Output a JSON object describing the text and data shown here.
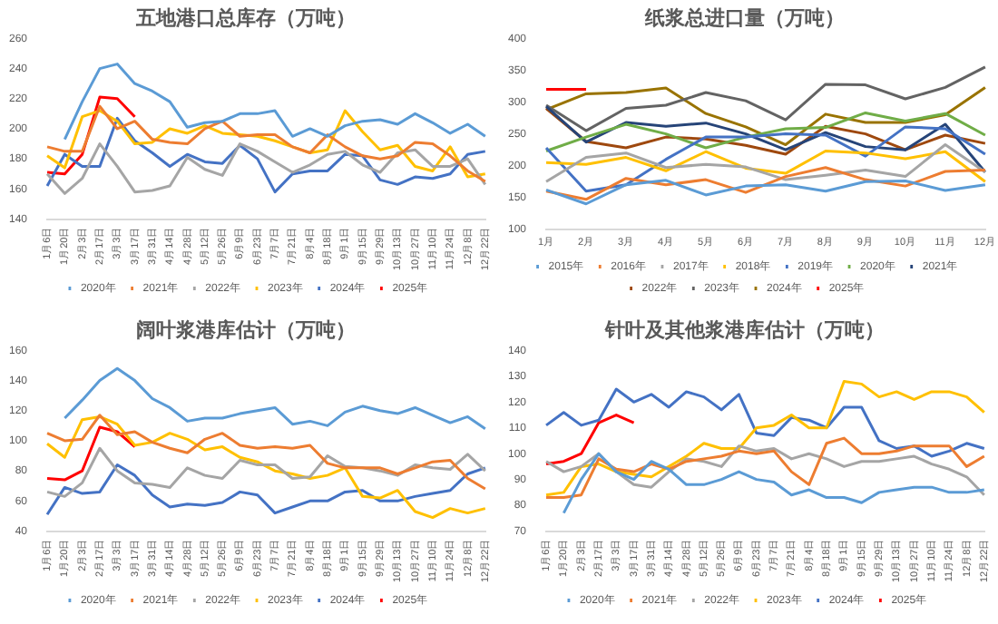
{
  "chart_data": [
    {
      "type": "line",
      "title": "五地港口总库存（万吨）",
      "legend": "bottom",
      "marker": "none",
      "ylim": [
        140,
        260
      ],
      "yticks": [
        140,
        160,
        180,
        200,
        220,
        240,
        260
      ],
      "categories": [
        "1月6日",
        "1月20日",
        "2月3日",
        "2月17日",
        "3月3日",
        "3月17日",
        "3月31日",
        "4月14日",
        "4月28日",
        "5月12日",
        "5月26日",
        "6月9日",
        "6月23日",
        "7月7日",
        "7月21日",
        "8月4日",
        "8月18日",
        "9月1日",
        "9月15日",
        "9月29日",
        "10月13日",
        "10月27日",
        "11月10日",
        "11月24日",
        "12月8日",
        "12月22日"
      ],
      "series": [
        {
          "name": "2020年",
          "color": "#5b9bd5",
          "values": [
            null,
            193,
            218,
            240,
            243,
            230,
            225,
            218,
            201,
            204,
            205,
            210,
            210,
            212,
            195,
            200,
            195,
            202,
            205,
            206,
            203,
            210,
            204,
            197,
            203,
            195
          ]
        },
        {
          "name": "2021年",
          "color": "#ed7d31",
          "values": [
            188,
            185,
            185,
            215,
            200,
            205,
            193,
            191,
            190,
            200,
            205,
            195,
            196,
            196,
            188,
            184,
            196,
            188,
            182,
            180,
            182,
            191,
            190,
            182,
            172,
            165
          ]
        },
        {
          "name": "2022年",
          "color": "#a5a5a5",
          "values": [
            170,
            157,
            167,
            190,
            175,
            158,
            159,
            162,
            181,
            173,
            169,
            190,
            185,
            178,
            171,
            176,
            183,
            185,
            176,
            171,
            184,
            186,
            175,
            175,
            180,
            163
          ]
        },
        {
          "name": "2023年",
          "color": "#ffc000",
          "values": [
            182,
            174,
            208,
            212,
            205,
            190,
            191,
            200,
            197,
            202,
            197,
            196,
            195,
            192,
            188,
            184,
            186,
            212,
            198,
            186,
            189,
            175,
            172,
            188,
            168,
            170
          ]
        },
        {
          "name": "2024年",
          "color": "#4472c4",
          "values": [
            162,
            183,
            175,
            175,
            207,
            192,
            184,
            175,
            183,
            178,
            177,
            189,
            180,
            158,
            170,
            172,
            172,
            183,
            182,
            166,
            163,
            168,
            167,
            170,
            183,
            185
          ]
        },
        {
          "name": "2025年",
          "color": "#ff0000",
          "values": [
            171,
            170,
            183,
            221,
            220,
            208,
            null,
            null,
            null,
            null,
            null,
            null,
            null,
            null,
            null,
            null,
            null,
            null,
            null,
            null,
            null,
            null,
            null,
            null,
            null,
            null
          ]
        }
      ]
    },
    {
      "type": "line",
      "title": "纸浆总进口量（万吨）",
      "legend": "bottom",
      "marker": "none",
      "ylim": [
        100,
        400
      ],
      "yticks": [
        100,
        150,
        200,
        250,
        300,
        350,
        400
      ],
      "categories": [
        "1月",
        "2月",
        "3月",
        "4月",
        "5月",
        "6月",
        "7月",
        "8月",
        "9月",
        "10月",
        "11月",
        "12月"
      ],
      "series": [
        {
          "name": "2015年",
          "color": "#5b9bd5",
          "values": [
            162,
            140,
            170,
            177,
            154,
            168,
            170,
            160,
            175,
            176,
            161,
            170
          ]
        },
        {
          "name": "2016年",
          "color": "#ed7d31",
          "values": [
            160,
            147,
            180,
            170,
            178,
            158,
            183,
            197,
            178,
            168,
            191,
            193
          ]
        },
        {
          "name": "2017年",
          "color": "#a5a5a5",
          "values": [
            175,
            213,
            220,
            197,
            202,
            198,
            178,
            185,
            193,
            183,
            233,
            190
          ]
        },
        {
          "name": "2018年",
          "color": "#ffc000",
          "values": [
            205,
            202,
            213,
            192,
            222,
            196,
            188,
            223,
            220,
            211,
            222,
            175
          ]
        },
        {
          "name": "2019年",
          "color": "#4472c4",
          "values": [
            228,
            160,
            170,
            210,
            245,
            245,
            250,
            248,
            215,
            261,
            258,
            218
          ]
        },
        {
          "name": "2020年",
          "color": "#70ad47",
          "values": [
            223,
            245,
            265,
            250,
            228,
            245,
            258,
            260,
            283,
            270,
            282,
            248
          ]
        },
        {
          "name": "2021年",
          "color": "#264478",
          "values": [
            293,
            237,
            268,
            262,
            267,
            250,
            225,
            252,
            230,
            225,
            265,
            190
          ]
        },
        {
          "name": "2022年",
          "color": "#9e480e",
          "values": [
            290,
            238,
            228,
            245,
            242,
            232,
            218,
            262,
            250,
            225,
            248,
            235
          ]
        },
        {
          "name": "2023年",
          "color": "#636363",
          "values": [
            295,
            255,
            290,
            295,
            315,
            302,
            272,
            328,
            327,
            305,
            323,
            355
          ]
        },
        {
          "name": "2024年",
          "color": "#997300",
          "values": [
            288,
            313,
            315,
            322,
            282,
            261,
            233,
            281,
            268,
            268,
            280,
            323
          ]
        },
        {
          "name": "2025年",
          "color": "#ff0000",
          "values": [
            320,
            320,
            null,
            null,
            null,
            null,
            null,
            null,
            null,
            null,
            null,
            null
          ]
        }
      ]
    },
    {
      "type": "line",
      "title": "阔叶浆港库估计（万吨）",
      "legend": "bottom",
      "marker": "none",
      "ylim": [
        40,
        160
      ],
      "yticks": [
        40,
        60,
        80,
        100,
        120,
        140,
        160
      ],
      "categories": [
        "1月6日",
        "1月20日",
        "2月3日",
        "2月17日",
        "3月3日",
        "3月17日",
        "3月31日",
        "4月14日",
        "4月28日",
        "5月12日",
        "5月26日",
        "6月9日",
        "6月23日",
        "7月7日",
        "7月21日",
        "8月4日",
        "8月18日",
        "9月1日",
        "9月15日",
        "9月29日",
        "10月13日",
        "10月27日",
        "11月10日",
        "11月24日",
        "12月8日",
        "12月22日"
      ],
      "series": [
        {
          "name": "2020年",
          "color": "#5b9bd5",
          "values": [
            null,
            115,
            127,
            140,
            148,
            140,
            128,
            122,
            113,
            115,
            115,
            118,
            120,
            122,
            111,
            113,
            110,
            119,
            123,
            120,
            118,
            122,
            117,
            112,
            116,
            108
          ]
        },
        {
          "name": "2021年",
          "color": "#ed7d31",
          "values": [
            105,
            100,
            101,
            117,
            104,
            106,
            99,
            95,
            92,
            101,
            105,
            97,
            95,
            96,
            95,
            97,
            85,
            82,
            82,
            82,
            78,
            82,
            86,
            87,
            75,
            68
          ]
        },
        {
          "name": "2022年",
          "color": "#a5a5a5",
          "values": [
            66,
            63,
            72,
            95,
            80,
            72,
            71,
            69,
            82,
            77,
            75,
            87,
            84,
            84,
            75,
            76,
            90,
            83,
            82,
            80,
            77,
            84,
            82,
            81,
            91,
            80
          ]
        },
        {
          "name": "2023年",
          "color": "#ffc000",
          "values": [
            98,
            89,
            114,
            116,
            111,
            97,
            99,
            105,
            101,
            94,
            96,
            89,
            86,
            80,
            78,
            75,
            77,
            82,
            63,
            62,
            67,
            53,
            49,
            55,
            52,
            55
          ]
        },
        {
          "name": "2024年",
          "color": "#4472c4",
          "values": [
            51,
            69,
            65,
            66,
            84,
            77,
            64,
            56,
            58,
            57,
            59,
            66,
            64,
            52,
            56,
            60,
            60,
            66,
            67,
            60,
            60,
            63,
            65,
            67,
            78,
            82
          ]
        },
        {
          "name": "2025年",
          "color": "#ff0000",
          "values": [
            75,
            74,
            80,
            109,
            106,
            96,
            null,
            null,
            null,
            null,
            null,
            null,
            null,
            null,
            null,
            null,
            null,
            null,
            null,
            null,
            null,
            null,
            null,
            null,
            null,
            null
          ]
        }
      ]
    },
    {
      "type": "line",
      "title": "针叶及其他浆港库估计（万吨）",
      "legend": "bottom",
      "marker": "none",
      "ylim": [
        70,
        140
      ],
      "yticks": [
        70,
        80,
        90,
        100,
        110,
        120,
        130,
        140
      ],
      "categories": [
        "1月6日",
        "1月20日",
        "2月3日",
        "2月17日",
        "3月3日",
        "3月17日",
        "3月31日",
        "4月14日",
        "4月28日",
        "5月12日",
        "5月26日",
        "6月9日",
        "6月23日",
        "7月7日",
        "7月21日",
        "8月4日",
        "8月18日",
        "9月1日",
        "9月15日",
        "9月29日",
        "10月13日",
        "10月27日",
        "11月10日",
        "11月24日",
        "12月8日",
        "12月22日"
      ],
      "series": [
        {
          "name": "2020年",
          "color": "#5b9bd5",
          "values": [
            null,
            77,
            90,
            100,
            93,
            90,
            97,
            94,
            88,
            88,
            90,
            93,
            90,
            89,
            84,
            86,
            83,
            83,
            81,
            85,
            86,
            87,
            87,
            85,
            85,
            86
          ]
        },
        {
          "name": "2021年",
          "color": "#ed7d31",
          "values": [
            83,
            83,
            84,
            98,
            94,
            93,
            96,
            94,
            97,
            98,
            99,
            101,
            100,
            101,
            93,
            88,
            104,
            106,
            100,
            100,
            101,
            103,
            103,
            103,
            95,
            99
          ]
        },
        {
          "name": "2022年",
          "color": "#a5a5a5",
          "values": [
            97,
            93,
            95,
            100,
            93,
            88,
            87,
            93,
            98,
            97,
            95,
            103,
            101,
            102,
            98,
            100,
            98,
            95,
            97,
            97,
            98,
            99,
            96,
            94,
            91,
            84
          ]
        },
        {
          "name": "2023年",
          "color": "#ffc000",
          "values": [
            84,
            85,
            95,
            96,
            93,
            92,
            91,
            95,
            99,
            104,
            102,
            102,
            110,
            111,
            115,
            110,
            110,
            128,
            127,
            122,
            124,
            121,
            124,
            124,
            122,
            116
          ]
        },
        {
          "name": "2024年",
          "color": "#4472c4",
          "values": [
            111,
            116,
            111,
            113,
            125,
            120,
            123,
            118,
            124,
            122,
            117,
            123,
            108,
            107,
            114,
            113,
            110,
            118,
            118,
            105,
            102,
            103,
            99,
            101,
            104,
            102
          ]
        },
        {
          "name": "2025年",
          "color": "#ff0000",
          "values": [
            96,
            97,
            100,
            112,
            115,
            112,
            null,
            null,
            null,
            null,
            null,
            null,
            null,
            null,
            null,
            null,
            null,
            null,
            null,
            null,
            null,
            null,
            null,
            null,
            null,
            null
          ]
        }
      ]
    }
  ]
}
